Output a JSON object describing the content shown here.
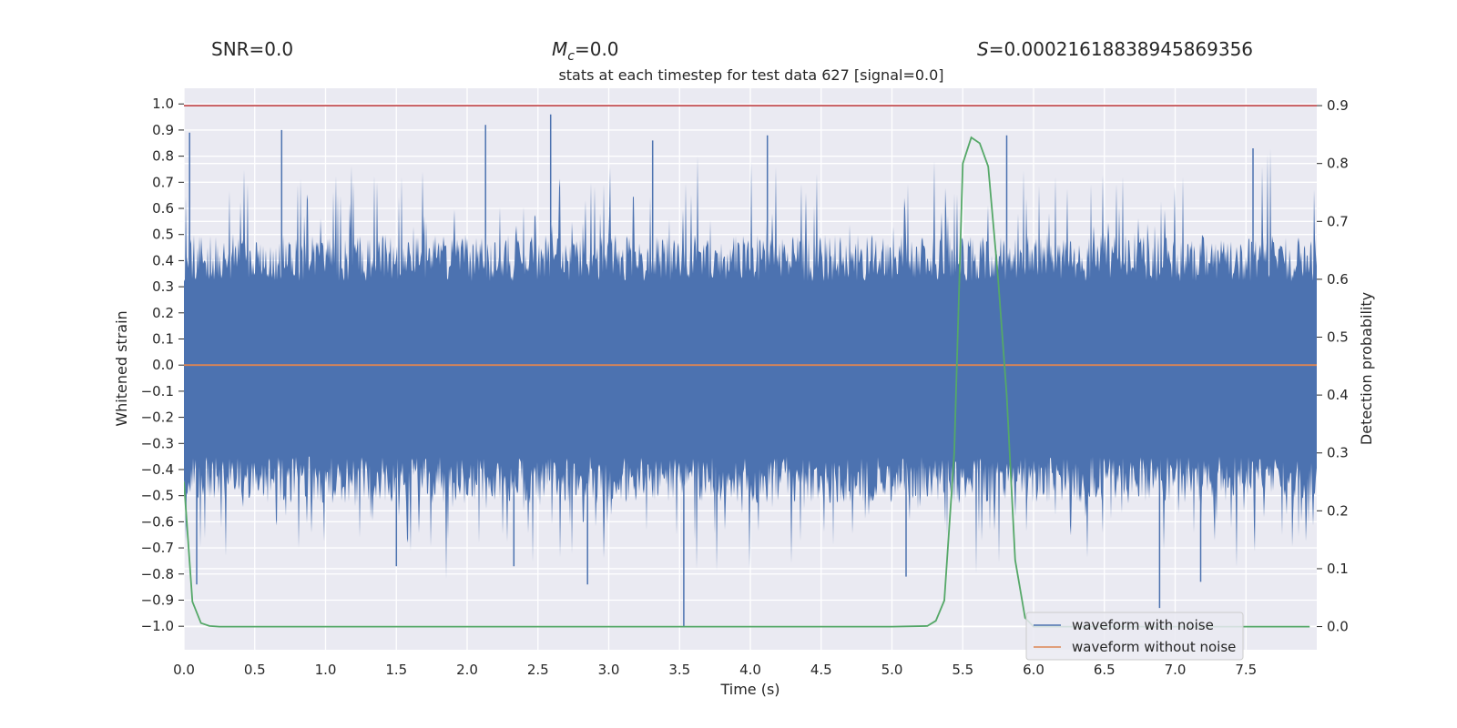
{
  "header": {
    "snr_label": "SNR=0.0",
    "mc_symbol": "M",
    "mc_sub": "c",
    "mc_value": "=0.0",
    "s_symbol": "S",
    "s_value": "=0.00021618838945869356"
  },
  "chart_data": {
    "type": "line",
    "title": "stats at each timestep for test data 627 [signal=0.0]",
    "xlabel": "Time (s)",
    "ylabel_left": "Whitened strain",
    "ylabel_right": "Detection probability",
    "xlim": [
      0.0,
      8.0
    ],
    "ylim_left": [
      -1.09,
      1.06
    ],
    "ylim_right": [
      -0.04,
      0.93
    ],
    "x_ticks": [
      "0.0",
      "0.5",
      "1.0",
      "1.5",
      "2.0",
      "2.5",
      "3.0",
      "3.5",
      "4.0",
      "4.5",
      "5.0",
      "5.5",
      "6.0",
      "6.5",
      "7.0",
      "7.5"
    ],
    "y_left_ticks": [
      "1.0",
      "0.9",
      "0.8",
      "0.7",
      "0.6",
      "0.5",
      "0.4",
      "0.3",
      "0.2",
      "0.1",
      "0.0",
      "-0.1",
      "-0.2",
      "-0.3",
      "-0.4",
      "-0.5",
      "-0.6",
      "-0.7",
      "-0.8",
      "-0.9",
      "-1.0"
    ],
    "y_right_ticks": [
      "0.9",
      "0.8",
      "0.7",
      "0.6",
      "0.5",
      "0.4",
      "0.3",
      "0.2",
      "0.1",
      "0.0"
    ],
    "grid": true,
    "legend_position": "lower-right",
    "series": [
      {
        "name": "waveform with noise",
        "axis": "left",
        "color": "#4c72b0",
        "description_type": "noise",
        "typical_band": [
          -0.35,
          0.32
        ],
        "notable_peaks": [
          {
            "x": 0.04,
            "y": 0.89
          },
          {
            "x": 0.69,
            "y": 0.9
          },
          {
            "x": 2.13,
            "y": 0.92
          },
          {
            "x": 2.59,
            "y": 0.96
          },
          {
            "x": 3.31,
            "y": 0.86
          },
          {
            "x": 4.12,
            "y": 0.88
          },
          {
            "x": 5.81,
            "y": 0.88
          },
          {
            "x": 7.55,
            "y": 0.83
          }
        ],
        "notable_troughs": [
          {
            "x": 0.09,
            "y": -0.84
          },
          {
            "x": 1.5,
            "y": -0.77
          },
          {
            "x": 2.33,
            "y": -0.77
          },
          {
            "x": 2.85,
            "y": -0.84
          },
          {
            "x": 3.53,
            "y": -1.0
          },
          {
            "x": 5.1,
            "y": -0.81
          },
          {
            "x": 6.89,
            "y": -0.93
          },
          {
            "x": 7.18,
            "y": -0.83
          }
        ]
      },
      {
        "name": "waveform without noise",
        "axis": "left",
        "color": "#dd8452",
        "x": [
          0.0,
          8.0
        ],
        "y": [
          0.0,
          0.0
        ]
      },
      {
        "name": "",
        "axis": "right",
        "color": "#55a868",
        "x": [
          0.0,
          0.06,
          0.12,
          0.18,
          0.25,
          0.5,
          1.0,
          2.0,
          3.0,
          4.0,
          4.5,
          5.0,
          5.25,
          5.31,
          5.37,
          5.44,
          5.5,
          5.56,
          5.62,
          5.68,
          5.75,
          5.81,
          5.87,
          5.94,
          6.0,
          6.06,
          6.12,
          6.5,
          7.0,
          7.5,
          7.95
        ],
        "y": [
          0.25,
          0.043,
          0.006,
          0.001,
          0.0,
          0.0,
          0.0,
          0.0,
          0.0,
          0.0,
          0.0,
          0.0,
          0.001,
          0.01,
          0.045,
          0.3,
          0.8,
          0.845,
          0.835,
          0.795,
          0.6,
          0.4,
          0.115,
          0.015,
          0.0,
          0.0,
          0.0,
          0.0,
          0.0,
          0.0,
          0.0
        ]
      },
      {
        "name": "",
        "axis": "right",
        "color": "#c44e52",
        "x": [
          0.0,
          8.0
        ],
        "y": [
          0.9,
          0.9
        ]
      }
    ]
  }
}
